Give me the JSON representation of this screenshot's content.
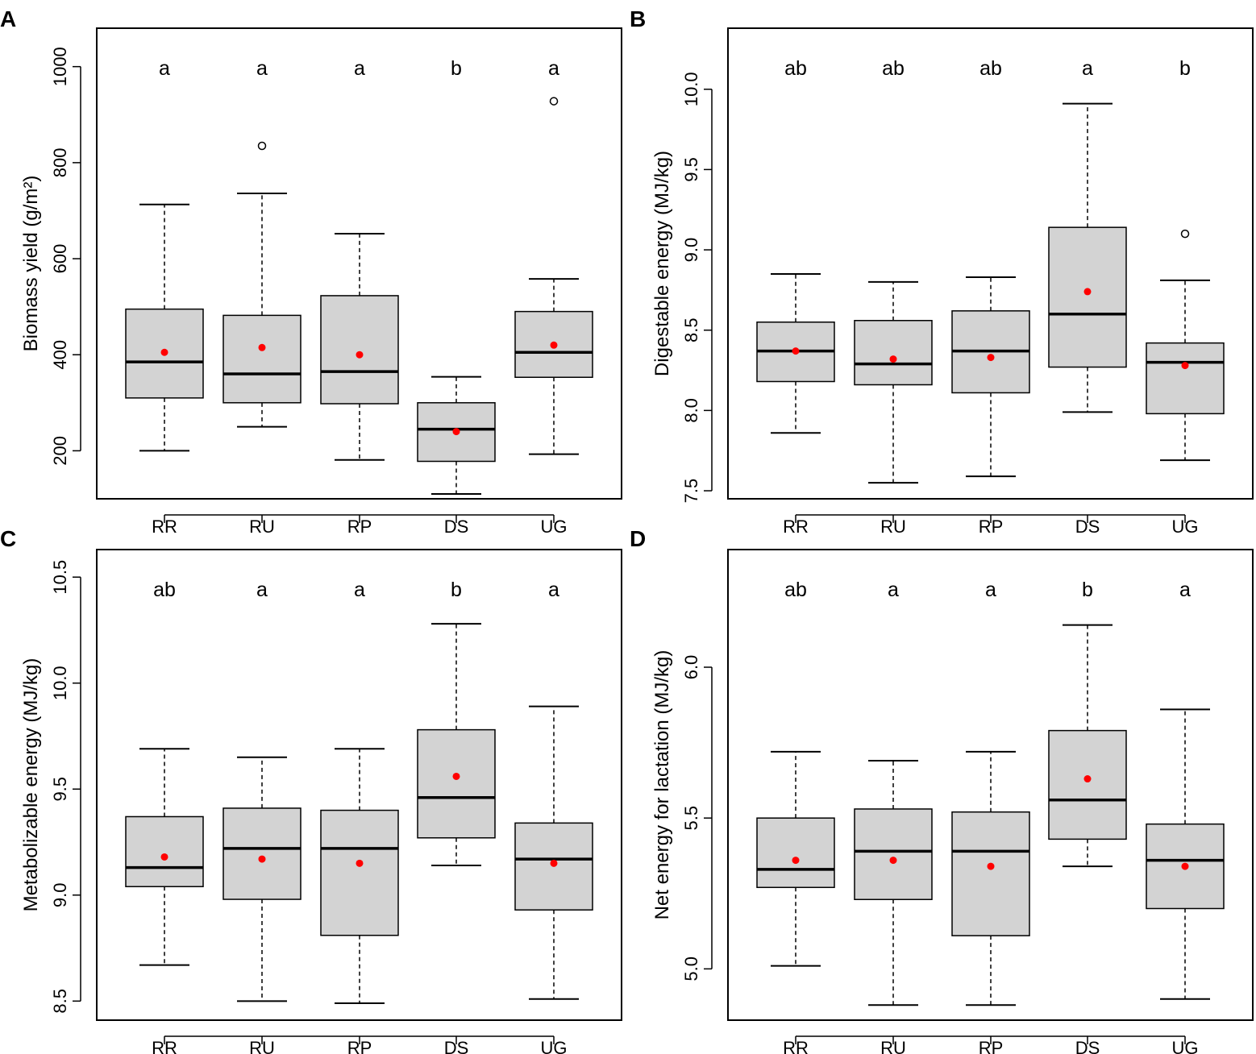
{
  "chart_data": [
    {
      "type": "boxplot",
      "panel": "A",
      "ylabel": "Biomass yield (g/m²)",
      "ylim": [
        100,
        1080
      ],
      "yticks": [
        200,
        400,
        600,
        800,
        1000
      ],
      "categories": [
        "RR",
        "RU",
        "RP",
        "DS",
        "UG"
      ],
      "letters": [
        "a",
        "a",
        "a",
        "b",
        "a"
      ],
      "boxes": [
        {
          "whisker_low": 200,
          "q1": 310,
          "median": 385,
          "q3": 495,
          "whisker_high": 713,
          "mean": 405,
          "outliers": []
        },
        {
          "whisker_low": 250,
          "q1": 300,
          "median": 360,
          "q3": 482,
          "whisker_high": 736,
          "mean": 415,
          "outliers": [
            835
          ]
        },
        {
          "whisker_low": 181,
          "q1": 298,
          "median": 365,
          "q3": 523,
          "whisker_high": 652,
          "mean": 400,
          "outliers": []
        },
        {
          "whisker_low": 110,
          "q1": 178,
          "median": 245,
          "q3": 300,
          "whisker_high": 354,
          "mean": 240,
          "outliers": []
        },
        {
          "whisker_low": 193,
          "q1": 353,
          "median": 405,
          "q3": 490,
          "whisker_high": 558,
          "mean": 420,
          "outliers": [
            928
          ]
        }
      ]
    },
    {
      "type": "boxplot",
      "panel": "B",
      "ylabel": "Digestable energy (MJ/kg)",
      "ylim": [
        7.45,
        10.38
      ],
      "yticks": [
        7.5,
        8.0,
        8.5,
        9.0,
        9.5,
        10.0
      ],
      "tick_labels": [
        "7.5",
        "8.0",
        "8.5",
        "9.0",
        "9.5",
        "10.0"
      ],
      "categories": [
        "RR",
        "RU",
        "RP",
        "DS",
        "UG"
      ],
      "letters": [
        "ab",
        "ab",
        "ab",
        "a",
        "b"
      ],
      "boxes": [
        {
          "whisker_low": 7.86,
          "q1": 8.18,
          "median": 8.37,
          "q3": 8.55,
          "whisker_high": 8.85,
          "mean": 8.37,
          "outliers": []
        },
        {
          "whisker_low": 7.55,
          "q1": 8.16,
          "median": 8.29,
          "q3": 8.56,
          "whisker_high": 8.8,
          "mean": 8.32,
          "outliers": []
        },
        {
          "whisker_low": 7.59,
          "q1": 8.11,
          "median": 8.37,
          "q3": 8.62,
          "whisker_high": 8.83,
          "mean": 8.33,
          "outliers": []
        },
        {
          "whisker_low": 7.99,
          "q1": 8.27,
          "median": 8.6,
          "q3": 9.14,
          "whisker_high": 9.91,
          "mean": 8.74,
          "outliers": []
        },
        {
          "whisker_low": 7.69,
          "q1": 7.98,
          "median": 8.3,
          "q3": 8.42,
          "whisker_high": 8.81,
          "mean": 8.28,
          "outliers": [
            9.1
          ]
        }
      ]
    },
    {
      "type": "boxplot",
      "panel": "C",
      "ylabel": "Metabolizable energy (MJ/kg)",
      "ylim": [
        8.41,
        10.63
      ],
      "yticks": [
        8.5,
        9.0,
        9.5,
        10.0,
        10.5
      ],
      "tick_labels": [
        "8.5",
        "9.0",
        "9.5",
        "10.0",
        "10.5"
      ],
      "categories": [
        "RR",
        "RU",
        "RP",
        "DS",
        "UG"
      ],
      "letters": [
        "ab",
        "a",
        "a",
        "b",
        "a"
      ],
      "boxes": [
        {
          "whisker_low": 8.67,
          "q1": 9.04,
          "median": 9.13,
          "q3": 9.37,
          "whisker_high": 9.69,
          "mean": 9.18,
          "outliers": []
        },
        {
          "whisker_low": 8.5,
          "q1": 8.98,
          "median": 9.22,
          "q3": 9.41,
          "whisker_high": 9.65,
          "mean": 9.17,
          "outliers": []
        },
        {
          "whisker_low": 8.49,
          "q1": 8.81,
          "median": 9.22,
          "q3": 9.4,
          "whisker_high": 9.69,
          "mean": 9.15,
          "outliers": []
        },
        {
          "whisker_low": 9.14,
          "q1": 9.27,
          "median": 9.46,
          "q3": 9.78,
          "whisker_high": 10.28,
          "mean": 9.56,
          "outliers": []
        },
        {
          "whisker_low": 8.51,
          "q1": 8.93,
          "median": 9.17,
          "q3": 9.34,
          "whisker_high": 9.89,
          "mean": 9.15,
          "outliers": []
        }
      ]
    },
    {
      "type": "boxplot",
      "panel": "D",
      "ylabel": "Net energy for lactation (MJ/kg)",
      "ylim": [
        4.83,
        6.39
      ],
      "yticks": [
        5.0,
        5.5,
        6.0
      ],
      "tick_labels": [
        "5.0",
        "5.5",
        "6.0"
      ],
      "categories": [
        "RR",
        "RU",
        "RP",
        "DS",
        "UG"
      ],
      "letters": [
        "ab",
        "a",
        "a",
        "b",
        "a"
      ],
      "boxes": [
        {
          "whisker_low": 5.01,
          "q1": 5.27,
          "median": 5.33,
          "q3": 5.5,
          "whisker_high": 5.72,
          "mean": 5.36,
          "outliers": []
        },
        {
          "whisker_low": 4.88,
          "q1": 5.23,
          "median": 5.39,
          "q3": 5.53,
          "whisker_high": 5.69,
          "mean": 5.36,
          "outliers": []
        },
        {
          "whisker_low": 4.88,
          "q1": 5.11,
          "median": 5.39,
          "q3": 5.52,
          "whisker_high": 5.72,
          "mean": 5.34,
          "outliers": []
        },
        {
          "whisker_low": 5.34,
          "q1": 5.43,
          "median": 5.56,
          "q3": 5.79,
          "whisker_high": 6.14,
          "mean": 5.63,
          "outliers": []
        },
        {
          "whisker_low": 4.9,
          "q1": 5.2,
          "median": 5.36,
          "q3": 5.48,
          "whisker_high": 5.86,
          "mean": 5.34,
          "outliers": []
        }
      ]
    }
  ],
  "colors": {
    "box_fill": "#d3d3d3",
    "mean_dot": "#ff0000",
    "line": "#000000"
  }
}
